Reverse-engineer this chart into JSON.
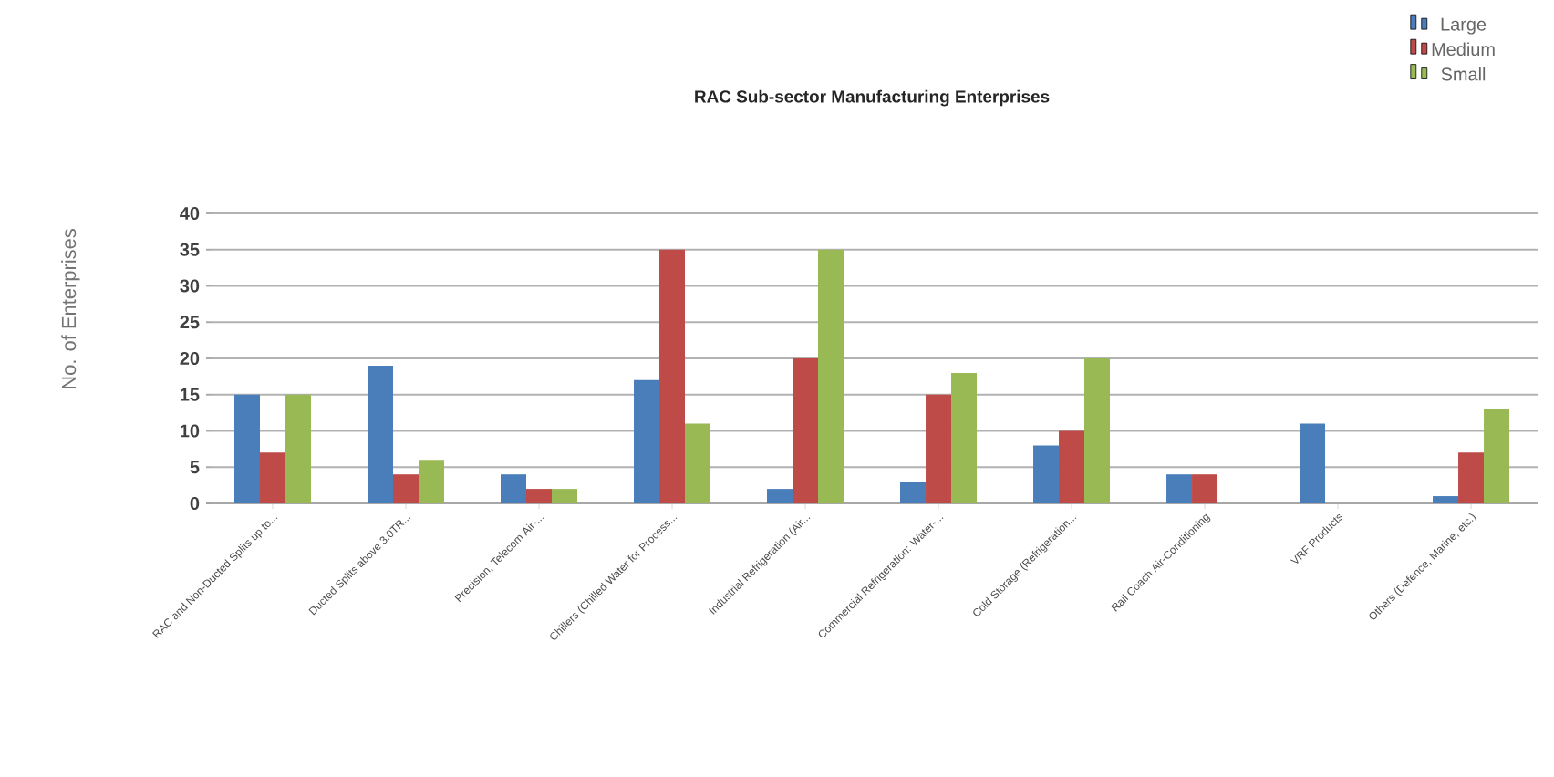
{
  "chart_data": {
    "type": "bar",
    "title": "RAC Sub-sector Manufacturing Enterprises",
    "ylabel": "No. of Enterprises",
    "categories": [
      "RAC and Non-Ducted Splits up to...",
      "Ducted Splits above 3.0TR...",
      "Precision, Telecom Air-...",
      "Chillers (Chilled Water for Process...",
      "Industrial Refrigeration (Air...",
      "Commercial Refrigeration: Water-...",
      "Cold Storage (Refrigeration...",
      "Rail Coach Air-Conditioning",
      "VRF Products",
      "Others (Defence, Marine, etc.)"
    ],
    "series": [
      {
        "name": "Large",
        "color": "#4a7ebb",
        "values": [
          15,
          19,
          4,
          17,
          2,
          3,
          8,
          4,
          11,
          1
        ]
      },
      {
        "name": "Medium",
        "color": "#be4b48",
        "values": [
          7,
          4,
          2,
          35,
          20,
          15,
          10,
          4,
          0,
          7
        ]
      },
      {
        "name": "Small",
        "color": "#98b954",
        "values": [
          15,
          6,
          2,
          11,
          35,
          18,
          20,
          0,
          0,
          13
        ]
      }
    ],
    "ylim": [
      0,
      40
    ],
    "yticks": [
      0,
      5,
      10,
      15,
      20,
      25,
      30,
      35,
      40
    ],
    "grid": "y",
    "legend": "top right"
  }
}
